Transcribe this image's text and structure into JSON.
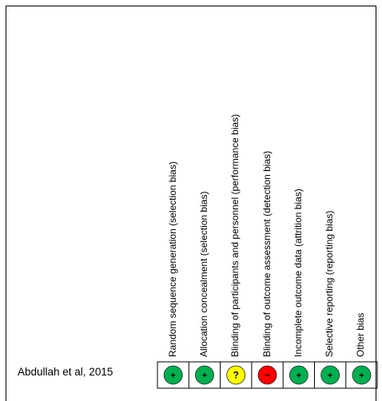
{
  "chart_data": {
    "type": "table",
    "columns": [
      "Random sequence generation (selection bias)",
      "Allocation concealment (selection bias)",
      "Blinding of participants and personnel (performance bias)",
      "Blinding of outcome assessment (detection bias)",
      "Incomplete outcome data (attrition bias)",
      "Selective reporting (reporting bias)",
      "Other bias"
    ],
    "rows": [
      {
        "study": "Abdullah et al, 2015",
        "judgements": [
          "low",
          "low",
          "unclear",
          "high",
          "low",
          "low",
          "low"
        ]
      }
    ],
    "symbols": {
      "low": "+",
      "unclear": "?",
      "high": "−"
    },
    "colors": {
      "low": "#00b050",
      "unclear": "#ffff00",
      "high": "#ff0000"
    }
  }
}
